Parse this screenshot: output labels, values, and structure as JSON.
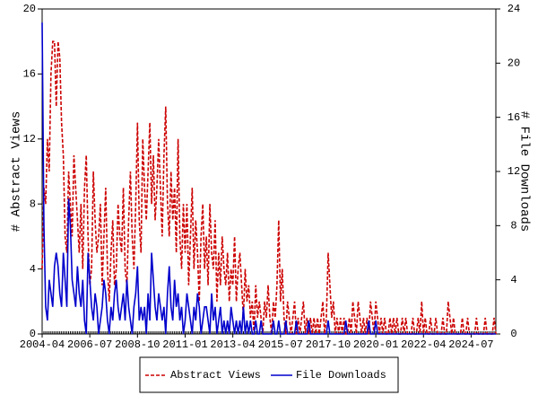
{
  "chart_data": {
    "type": "line",
    "ylabel": "# Abstract Views",
    "y2label": "# File Downloads",
    "categories": [
      "2004-04",
      null,
      null,
      null,
      null,
      null,
      null,
      null,
      null,
      null,
      null,
      null,
      null,
      null,
      null,
      null,
      null,
      null,
      null,
      null,
      null,
      null,
      null,
      null,
      null,
      null,
      null,
      "2006-07",
      null,
      null,
      null,
      null,
      null,
      null,
      null,
      null,
      null,
      null,
      null,
      null,
      null,
      null,
      null,
      null,
      null,
      null,
      null,
      null,
      null,
      null,
      null,
      null,
      null,
      null,
      "2008-10",
      null,
      null,
      null,
      null,
      null,
      null,
      null,
      null,
      null,
      null,
      null,
      null,
      null,
      null,
      null,
      null,
      null,
      null,
      null,
      null,
      null,
      null,
      null,
      null,
      null,
      null,
      "2011-01",
      null,
      null,
      null,
      null,
      null,
      null,
      null,
      null,
      null,
      null,
      null,
      null,
      null,
      null,
      null,
      null,
      null,
      null,
      null,
      null,
      null,
      null,
      null,
      null,
      null,
      null,
      "2013-04",
      null,
      null,
      null,
      null,
      null,
      null,
      null,
      null,
      null,
      null,
      null,
      null,
      null,
      null,
      null,
      null,
      null,
      null,
      null,
      null,
      null,
      null,
      null,
      null,
      null,
      null,
      "2015-07",
      null,
      null,
      null,
      null,
      null,
      null,
      null,
      null,
      null,
      null,
      null,
      null,
      null,
      null,
      null,
      null,
      null,
      null,
      null,
      null,
      null,
      null,
      null,
      null,
      null,
      null,
      "2017-10",
      null,
      null,
      null,
      null,
      null,
      null,
      null,
      null,
      null,
      null,
      null,
      null,
      null,
      null,
      null,
      null,
      null,
      null,
      null,
      null,
      null,
      null,
      null,
      null,
      null,
      null,
      "2020-01",
      null,
      null,
      null,
      null,
      null,
      null,
      null,
      null,
      null,
      null,
      null,
      null,
      null,
      null,
      null,
      null,
      null,
      null,
      null,
      null,
      null,
      null,
      null,
      null,
      null,
      null,
      "2022-04",
      null,
      null,
      null,
      null,
      null,
      null,
      null,
      null,
      null,
      null,
      null,
      null,
      null,
      null,
      null,
      null,
      null,
      null,
      null,
      null,
      null,
      null,
      null,
      null,
      null,
      null,
      "2024-07",
      null,
      null,
      null,
      null,
      null,
      null,
      null,
      null,
      null,
      null,
      null,
      null,
      null,
      null
    ],
    "series": [
      {
        "name": "Abstract Views",
        "color": "#cc0000",
        "dashed": true,
        "axis": "y",
        "values": [
          4,
          9,
          8,
          12,
          10,
          16,
          18,
          18,
          14,
          18,
          17,
          13,
          11,
          6,
          5,
          10,
          8,
          6,
          11,
          9,
          7,
          5,
          8,
          4,
          9,
          11,
          6,
          3,
          4,
          10,
          7,
          5,
          6,
          8,
          3,
          6,
          9,
          4,
          2,
          5,
          7,
          3,
          4,
          8,
          6,
          5,
          9,
          4,
          3,
          7,
          10,
          6,
          4,
          8,
          13,
          7,
          5,
          12,
          9,
          7,
          10,
          13,
          8,
          11,
          7,
          9,
          12,
          9,
          6,
          11,
          14,
          8,
          6,
          10,
          7,
          9,
          5,
          12,
          6,
          4,
          8,
          5,
          8,
          3,
          6,
          9,
          4,
          7,
          5,
          2,
          6,
          8,
          4,
          6,
          3,
          8,
          5,
          4,
          7,
          2,
          5,
          3,
          6,
          4,
          3,
          5,
          2,
          4,
          3,
          6,
          2,
          4,
          5,
          3,
          1,
          4,
          2,
          3,
          1,
          2,
          0,
          3,
          1,
          2,
          1,
          0,
          2,
          1,
          3,
          1,
          0,
          2,
          1,
          3,
          7,
          2,
          4,
          1,
          0,
          2,
          1,
          0,
          1,
          2,
          0,
          1,
          0,
          1,
          2,
          0,
          1,
          0,
          1,
          0,
          1,
          0,
          1,
          0,
          1,
          2,
          0,
          1,
          5,
          3,
          1,
          2,
          0,
          1,
          0,
          1,
          0,
          1,
          0,
          0,
          1,
          0,
          2,
          1,
          0,
          2,
          1,
          0,
          1,
          0,
          1,
          0,
          2,
          1,
          0,
          2,
          1,
          0,
          1,
          0,
          1,
          0,
          0,
          1,
          0,
          1,
          0,
          1,
          0,
          0,
          1,
          0,
          1,
          0,
          0,
          0,
          1,
          0,
          0,
          1,
          0,
          2,
          0,
          1,
          0,
          0,
          1,
          0,
          0,
          1,
          0,
          0,
          0,
          1,
          0,
          0,
          2,
          1,
          0,
          1,
          0,
          0,
          0,
          0,
          1,
          0,
          0,
          1,
          0,
          0,
          0,
          0,
          1,
          0,
          0,
          0,
          0,
          1,
          0,
          0,
          0,
          0,
          1,
          0
        ]
      },
      {
        "name": "File Downloads",
        "color": "#0000cc",
        "dashed": false,
        "axis": "y2",
        "values": [
          23,
          8,
          2,
          1,
          4,
          3,
          2,
          5,
          6,
          5,
          3,
          2,
          6,
          4,
          2,
          10,
          8,
          4,
          3,
          2,
          5,
          3,
          2,
          4,
          1,
          0,
          6,
          4,
          2,
          1,
          3,
          2,
          0,
          1,
          2,
          4,
          3,
          1,
          0,
          2,
          1,
          3,
          4,
          2,
          1,
          2,
          3,
          1,
          4,
          2,
          1,
          0,
          2,
          3,
          5,
          1,
          2,
          1,
          2,
          0,
          3,
          1,
          6,
          4,
          2,
          1,
          3,
          2,
          1,
          2,
          0,
          3,
          5,
          2,
          1,
          4,
          2,
          3,
          1,
          2,
          0,
          1,
          3,
          2,
          1,
          0,
          2,
          1,
          3,
          2,
          0,
          1,
          2,
          2,
          1,
          0,
          3,
          1,
          2,
          0,
          1,
          2,
          0,
          1,
          0,
          1,
          0,
          2,
          1,
          0,
          1,
          0,
          1,
          0,
          2,
          0,
          1,
          0,
          1,
          0,
          0,
          1,
          0,
          0,
          1,
          0,
          0,
          0,
          0,
          0,
          0,
          1,
          0,
          0,
          1,
          0,
          0,
          0,
          1,
          0,
          0,
          0,
          0,
          0,
          1,
          0,
          0,
          0,
          0,
          0,
          0,
          1,
          0,
          0,
          0,
          0,
          0,
          0,
          0,
          0,
          0,
          0,
          1,
          0,
          0,
          0,
          0,
          0,
          0,
          0,
          0,
          0,
          1,
          0,
          0,
          0,
          0,
          0,
          0,
          0,
          0,
          0,
          0,
          0,
          0,
          1,
          0,
          0,
          0,
          1,
          0,
          0,
          0,
          0,
          0,
          0,
          0,
          0,
          0,
          0,
          0,
          0,
          0,
          0,
          0,
          0,
          0,
          0,
          0,
          0,
          0,
          0,
          0,
          0,
          0,
          0,
          0,
          0,
          0,
          0,
          0,
          0,
          0,
          0,
          0,
          0,
          0,
          0,
          0,
          0,
          0,
          0,
          0,
          0,
          0,
          0,
          0,
          0,
          0,
          0,
          0,
          0,
          0,
          0,
          0,
          0,
          0,
          0,
          0,
          0,
          0,
          0,
          0,
          0,
          0,
          0,
          0,
          0
        ]
      }
    ],
    "ylim": [
      0,
      20
    ],
    "yticks": [
      0,
      4,
      8,
      12,
      16,
      20
    ],
    "y2lim": [
      0,
      24
    ],
    "y2ticks": [
      0,
      4,
      8,
      12,
      16,
      20,
      24
    ],
    "legend": "bottom"
  }
}
